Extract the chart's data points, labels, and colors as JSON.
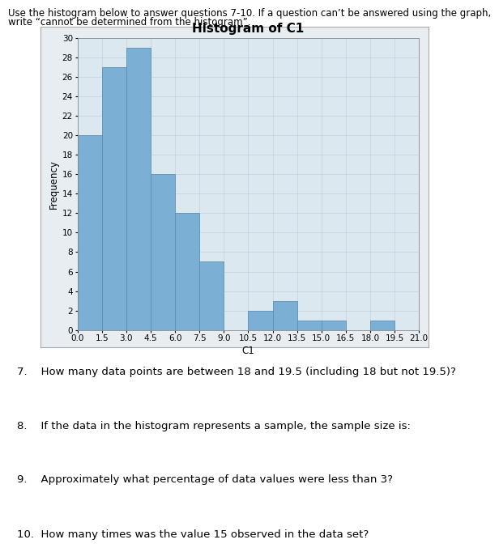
{
  "title": "Histogram of C1",
  "xlabel": "C1",
  "ylabel": "Frequency",
  "bar_left_edges": [
    0.0,
    1.5,
    3.0,
    4.5,
    6.0,
    7.5,
    9.0,
    10.5,
    12.0,
    13.5,
    15.0,
    16.5,
    18.0,
    19.5
  ],
  "bar_heights": [
    20,
    27,
    29,
    16,
    12,
    7,
    0,
    2,
    3,
    1,
    1,
    0,
    1,
    0
  ],
  "bar_width": 1.5,
  "bar_color": "#7bafd4",
  "bar_edgecolor": "#5a8fbb",
  "xlim": [
    0.0,
    21.0
  ],
  "ylim": [
    0,
    30
  ],
  "yticks": [
    0,
    2,
    4,
    6,
    8,
    10,
    12,
    14,
    16,
    18,
    20,
    22,
    24,
    26,
    28,
    30
  ],
  "xticks": [
    0.0,
    1.5,
    3.0,
    4.5,
    6.0,
    7.5,
    9.0,
    10.5,
    12.0,
    13.5,
    15.0,
    16.5,
    18.0,
    19.5,
    21.0
  ],
  "grid_color": "#c0d0e0",
  "panel_bg": "#dce8f0",
  "outer_box_bg": "#e8edf2",
  "fig_bg": "#ffffff",
  "header_line1": "Use the histogram below to answer questions 7-10. If a question can’t be answered using the graph,",
  "header_line2": "write “cannot be determined from the histogram”.",
  "questions": [
    "7.    How many data points are between 18 and 19.5 (including 18 but not 19.5)?",
    "8.    If the data in the histogram represents a sample, the sample size is:",
    "9.    Approximately what percentage of data values were less than 3?",
    "10.  How many times was the value 15 observed in the data set?"
  ],
  "title_fontsize": 11,
  "axis_label_fontsize": 8.5,
  "tick_fontsize": 7.5,
  "header_fontsize": 8.5,
  "question_fontsize": 9.5
}
